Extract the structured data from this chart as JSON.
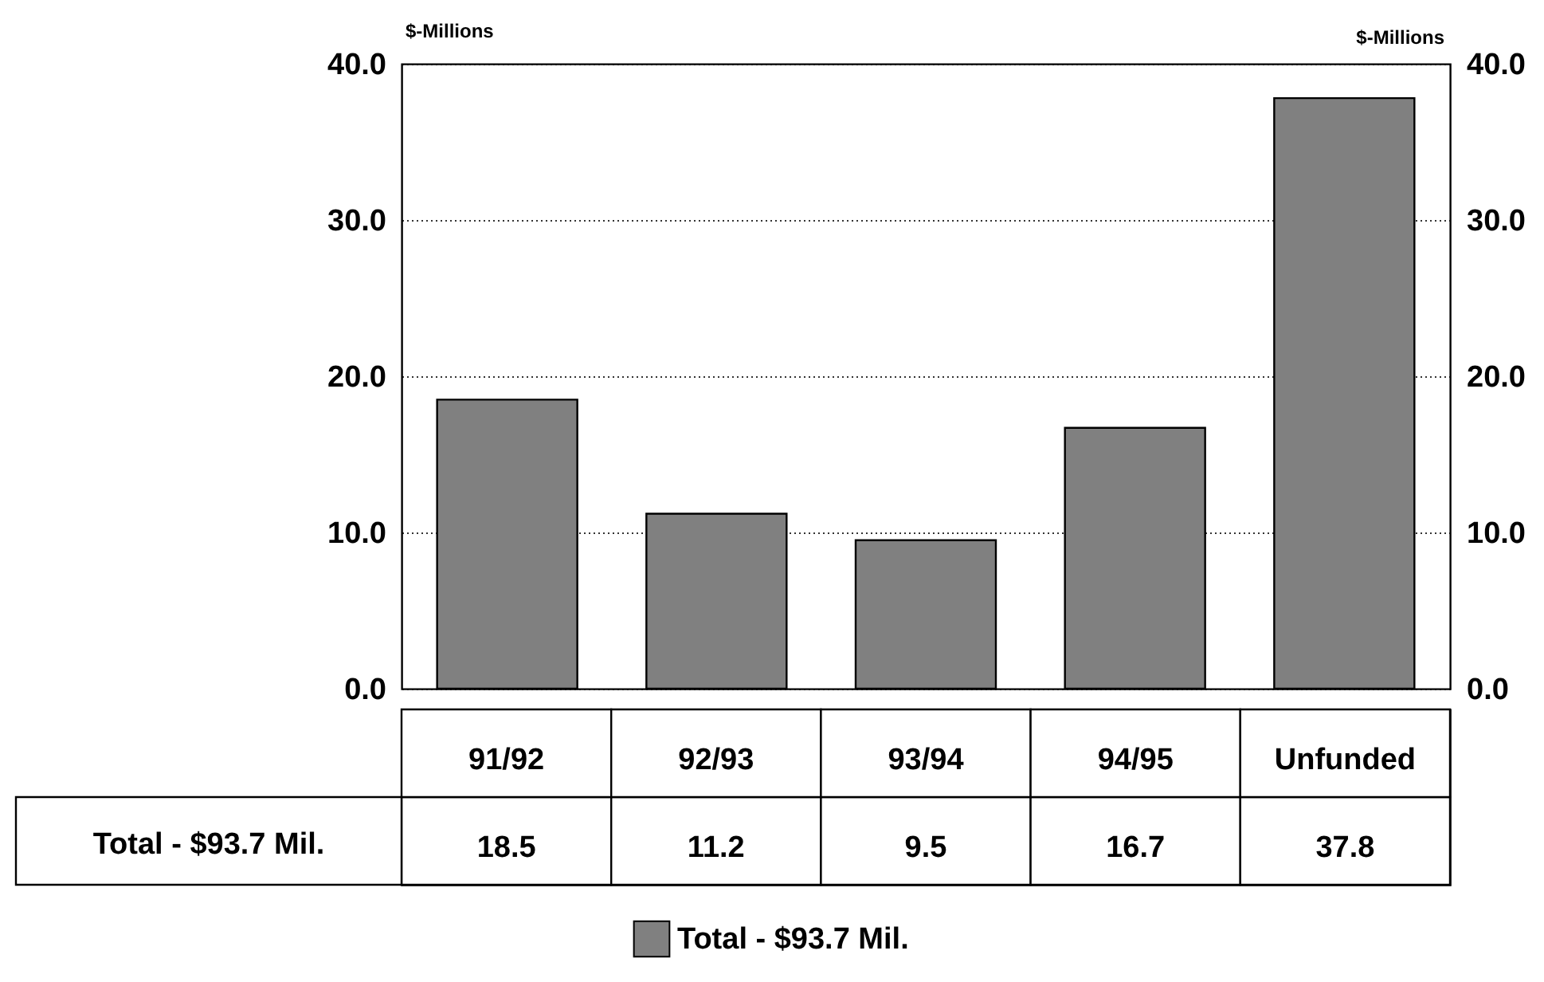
{
  "chart_data": {
    "type": "bar",
    "categories": [
      "91/92",
      "92/93",
      "93/94",
      "94/95",
      "Unfunded"
    ],
    "series": [
      {
        "name": "Total - $93.7 Mil.",
        "color": "#808080",
        "values": [
          18.5,
          11.2,
          9.5,
          16.7,
          37.8
        ]
      }
    ],
    "ylabel": "$-Millions",
    "y2label": "$-Millions",
    "ylim": [
      0,
      40
    ],
    "yticks": [
      {
        "value": 0,
        "label": "0.0"
      },
      {
        "value": 10,
        "label": "10.0"
      },
      {
        "value": 20,
        "label": "20.0"
      },
      {
        "value": 30,
        "label": "30.0"
      },
      {
        "value": 40,
        "label": "40.0"
      }
    ],
    "y2lim": [
      0,
      40
    ],
    "y2ticks": [
      {
        "value": 0,
        "label": "0.0"
      },
      {
        "value": 10,
        "label": "10.0"
      },
      {
        "value": 20,
        "label": "20.0"
      },
      {
        "value": 30,
        "label": "30.0"
      },
      {
        "value": 40,
        "label": "40.0"
      }
    ],
    "grid": "y",
    "legend": "bottom",
    "data_labels": true
  }
}
